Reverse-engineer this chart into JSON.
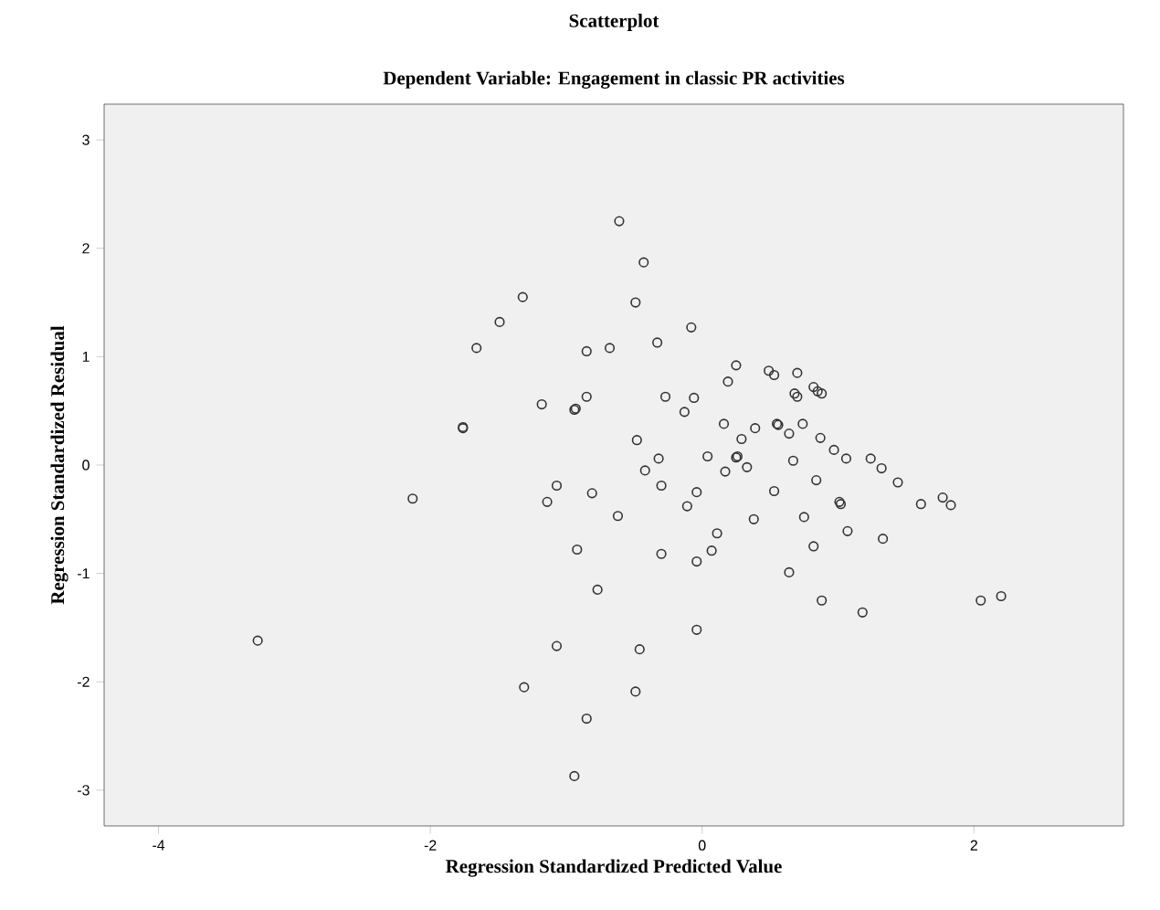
{
  "chart_data": {
    "type": "scatter",
    "title": "Scatterplot",
    "subtitle": "Dependent Variable: Engagement in classic PR activities",
    "xlabel": "Regression Standardized Predicted Value",
    "ylabel": "Regression Standardized Residual",
    "xlim": [
      -4.4,
      3.1
    ],
    "ylim": [
      -3.33,
      3.33
    ],
    "xticks": [
      -4,
      -2,
      0,
      2
    ],
    "yticks": [
      -3,
      -2,
      -1,
      0,
      1,
      2,
      3
    ],
    "grid": false,
    "marker": "circle",
    "series": [
      {
        "color": "#333333",
        "x": [
          -0.61,
          -1.32,
          -1.49,
          -1.66,
          -0.68,
          -0.85,
          -0.85,
          -1.18,
          -0.94,
          -0.93,
          -1.76,
          -1.76,
          -0.43,
          -0.49,
          -0.08,
          -0.33,
          0.25,
          0.19,
          0.49,
          0.53,
          0.7,
          0.82,
          0.85,
          0.88,
          0.68,
          0.7,
          -0.27,
          -0.06,
          -0.13,
          0.16,
          0.39,
          0.29,
          0.55,
          0.56,
          0.64,
          0.74,
          0.87,
          0.97,
          1.06,
          1.24,
          1.32,
          -0.48,
          -0.32,
          -0.42,
          0.04,
          0.25,
          0.26,
          0.33,
          0.67,
          0.17,
          -0.3,
          -0.04,
          -0.11,
          -0.62,
          0.53,
          0.84,
          1.44,
          1.01,
          1.02,
          1.61,
          1.77,
          1.83,
          0.11,
          0.38,
          0.75,
          1.07,
          1.33,
          -0.3,
          -0.04,
          0.07,
          0.82,
          0.64,
          0.88,
          1.18,
          2.05,
          2.2,
          -0.04,
          -0.46,
          -0.49,
          -3.27,
          -2.13,
          -1.14,
          -1.07,
          -0.81,
          -0.92,
          -0.77,
          -1.07,
          -1.31,
          -0.85,
          -0.94
        ],
        "values": [
          2.25,
          1.55,
          1.32,
          1.08,
          1.08,
          1.05,
          0.63,
          0.56,
          0.51,
          0.52,
          0.34,
          0.35,
          1.87,
          1.5,
          1.27,
          1.13,
          0.92,
          0.77,
          0.87,
          0.83,
          0.85,
          0.72,
          0.68,
          0.66,
          0.66,
          0.63,
          0.63,
          0.62,
          0.49,
          0.38,
          0.34,
          0.24,
          0.38,
          0.37,
          0.29,
          0.38,
          0.25,
          0.14,
          0.06,
          0.06,
          -0.03,
          0.23,
          0.06,
          -0.05,
          0.08,
          0.07,
          0.08,
          -0.02,
          0.04,
          -0.06,
          -0.19,
          -0.25,
          -0.38,
          -0.47,
          -0.24,
          -0.14,
          -0.16,
          -0.34,
          -0.36,
          -0.36,
          -0.3,
          -0.37,
          -0.63,
          -0.5,
          -0.48,
          -0.61,
          -0.68,
          -0.82,
          -0.89,
          -0.79,
          -0.75,
          -0.99,
          -1.25,
          -1.36,
          -1.25,
          -1.21,
          -1.52,
          -1.7,
          -2.09,
          -1.62,
          -0.31,
          -0.34,
          -0.19,
          -0.26,
          -0.78,
          -1.15,
          -1.67,
          -2.05,
          -2.34,
          -2.87
        ]
      }
    ]
  }
}
